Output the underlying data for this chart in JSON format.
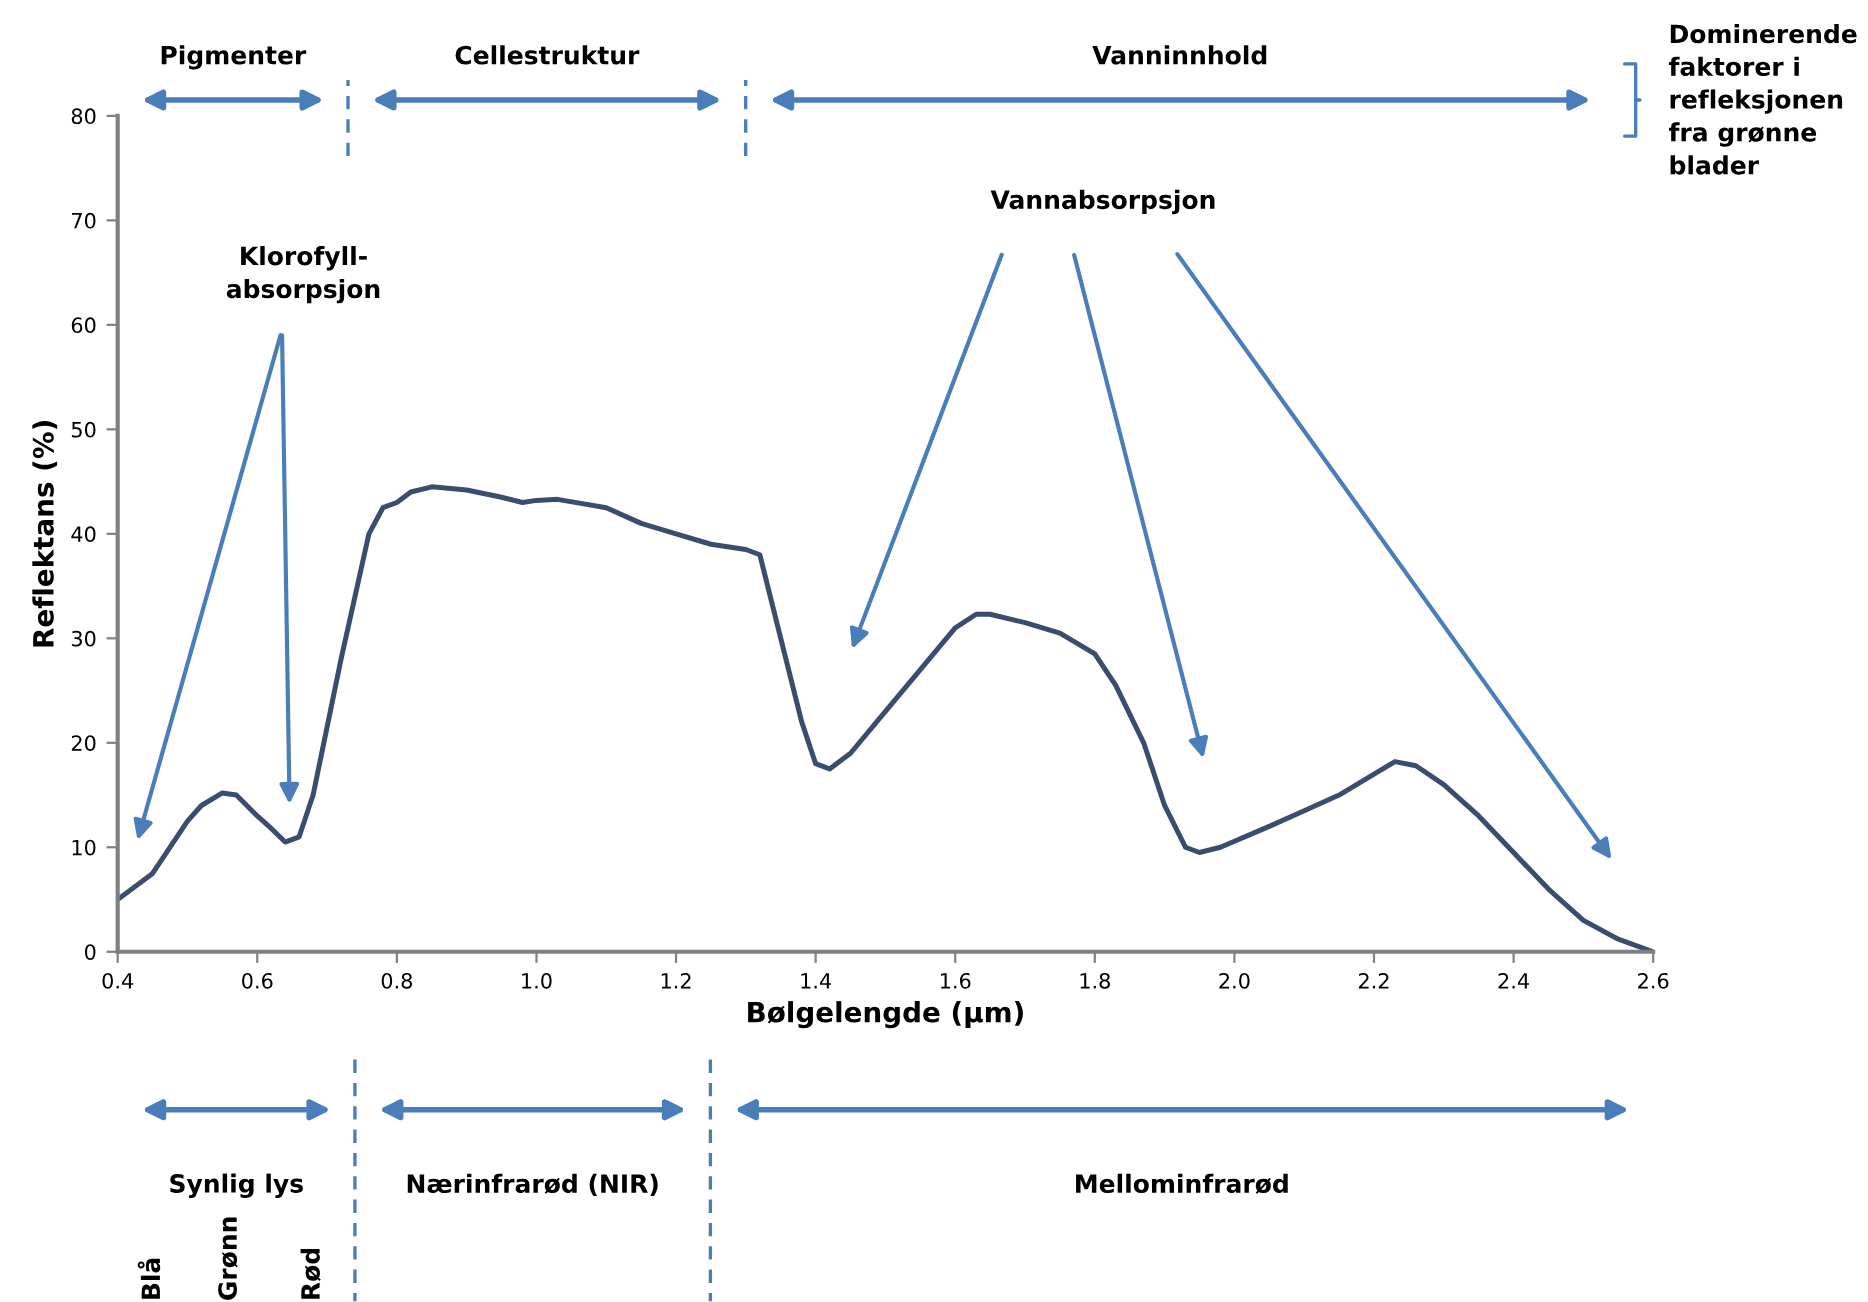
{
  "chart_data": {
    "type": "line",
    "xlabel": "Bølgelengde (µm)",
    "ylabel": "Reflektans (%)",
    "x": [
      0.4,
      0.45,
      0.5,
      0.52,
      0.55,
      0.57,
      0.6,
      0.62,
      0.64,
      0.66,
      0.68,
      0.72,
      0.76,
      0.78,
      0.8,
      0.82,
      0.85,
      0.9,
      0.95,
      0.98,
      1.0,
      1.03,
      1.1,
      1.15,
      1.2,
      1.25,
      1.3,
      1.32,
      1.35,
      1.38,
      1.4,
      1.42,
      1.45,
      1.5,
      1.55,
      1.6,
      1.63,
      1.65,
      1.7,
      1.75,
      1.8,
      1.83,
      1.87,
      1.9,
      1.93,
      1.95,
      1.98,
      2.05,
      2.1,
      2.15,
      2.2,
      2.23,
      2.26,
      2.3,
      2.35,
      2.4,
      2.45,
      2.5,
      2.55,
      2.6
    ],
    "series": [
      {
        "color": "#3b4d6e",
        "values": [
          5,
          7.5,
          12.5,
          14,
          15.2,
          15,
          13,
          11.8,
          10.5,
          11,
          15,
          28,
          40,
          42.5,
          43,
          44,
          44.5,
          44.2,
          43.5,
          43,
          43.2,
          43.3,
          42.5,
          41,
          40,
          39,
          38.5,
          38,
          30,
          22,
          18,
          17.5,
          19,
          23,
          27,
          31,
          32.3,
          32.3,
          31.5,
          30.5,
          28.5,
          25.5,
          20,
          14,
          10,
          9.5,
          10,
          12,
          13.5,
          15,
          17,
          18.2,
          17.8,
          16,
          13,
          9.5,
          6,
          3,
          1.2,
          0
        ]
      }
    ],
    "xlim": [
      0.4,
      2.6
    ],
    "ylim": [
      0,
      80
    ],
    "xticks": [
      0.4,
      0.6,
      0.8,
      {
        "value": 1.0,
        "label": "1.0"
      },
      1.2,
      1.4,
      1.6,
      1.8,
      {
        "value": 2.0,
        "label": "2.0"
      },
      2.2,
      2.4,
      2.6
    ],
    "yticks": [
      0,
      10,
      20,
      30,
      40,
      50,
      60,
      70,
      80
    ],
    "marker": "none",
    "line_style": "solid",
    "annotations": [
      "Pigmenter",
      "Cellestruktur",
      "Vanninnhold",
      "Dominerende\nfaktorer i\nrefleksjonen\nfra grønne\nblader",
      "Klorofyll-\nabsorpsjon",
      "Vannabsorpsjon",
      "Synlig lys",
      "Nærinfrarød (NIR)",
      "Mellominfrarød",
      "Blå",
      "Grønn",
      "Rød"
    ]
  }
}
